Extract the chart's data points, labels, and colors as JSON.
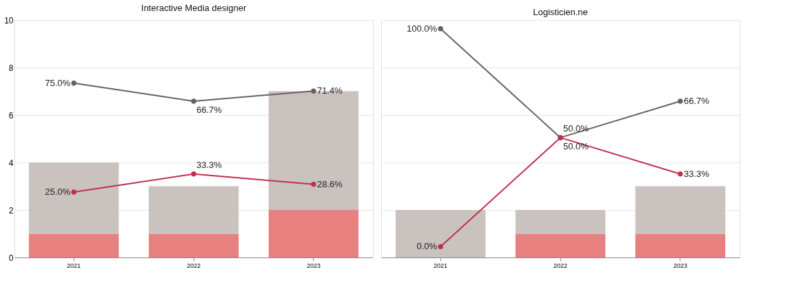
{
  "chart_data": [
    {
      "type": "bar",
      "title": "Interactive Media designer",
      "categories": [
        "2021",
        "2022",
        "2023"
      ],
      "stacked": true,
      "ylim": [
        0,
        10
      ],
      "yticks": [
        0,
        2,
        4,
        6,
        8,
        10
      ],
      "y2lim": [
        -5,
        104
      ],
      "grid": "y",
      "marker": "circle",
      "series": [
        {
          "color": "#e88080",
          "values": [
            1,
            1,
            2
          ]
        },
        {
          "color": "#c9c2bf",
          "values": [
            3,
            2,
            5
          ]
        },
        {
          "type": "line",
          "axis": "y2",
          "color": "#6b5f5f",
          "values": [
            75.0,
            66.7,
            71.4
          ],
          "value_labels": [
            "75.0%",
            "66.7%",
            "71.4%"
          ]
        },
        {
          "type": "line",
          "axis": "y2",
          "color": "#c0304a",
          "values": [
            25.0,
            33.3,
            28.6
          ],
          "value_labels": [
            "25.0%",
            "33.3%",
            "28.6%"
          ]
        }
      ]
    },
    {
      "type": "bar",
      "title": "Logisticien.ne",
      "categories": [
        "2021",
        "2022",
        "2023"
      ],
      "stacked": true,
      "ylim": [
        0,
        10
      ],
      "yticks": [
        0,
        2,
        4,
        6,
        8,
        10
      ],
      "y2lim": [
        -5,
        104
      ],
      "grid": "y",
      "marker": "circle",
      "tick_labels": "x",
      "series": [
        {
          "color": "#e88080",
          "values": [
            0,
            1,
            1
          ]
        },
        {
          "color": "#c9c2bf",
          "values": [
            2,
            1,
            2
          ]
        },
        {
          "type": "line",
          "axis": "y2",
          "color": "#6b5f5f",
          "values": [
            100.0,
            50.0,
            66.7
          ],
          "value_labels": [
            "100.0%",
            "50.0%",
            "66.7%"
          ]
        },
        {
          "type": "line",
          "axis": "y2",
          "color": "#c0304a",
          "values": [
            0.0,
            50.0,
            33.3
          ],
          "value_labels": [
            "0.0%",
            "50.0%",
            "33.3%"
          ]
        }
      ]
    }
  ]
}
